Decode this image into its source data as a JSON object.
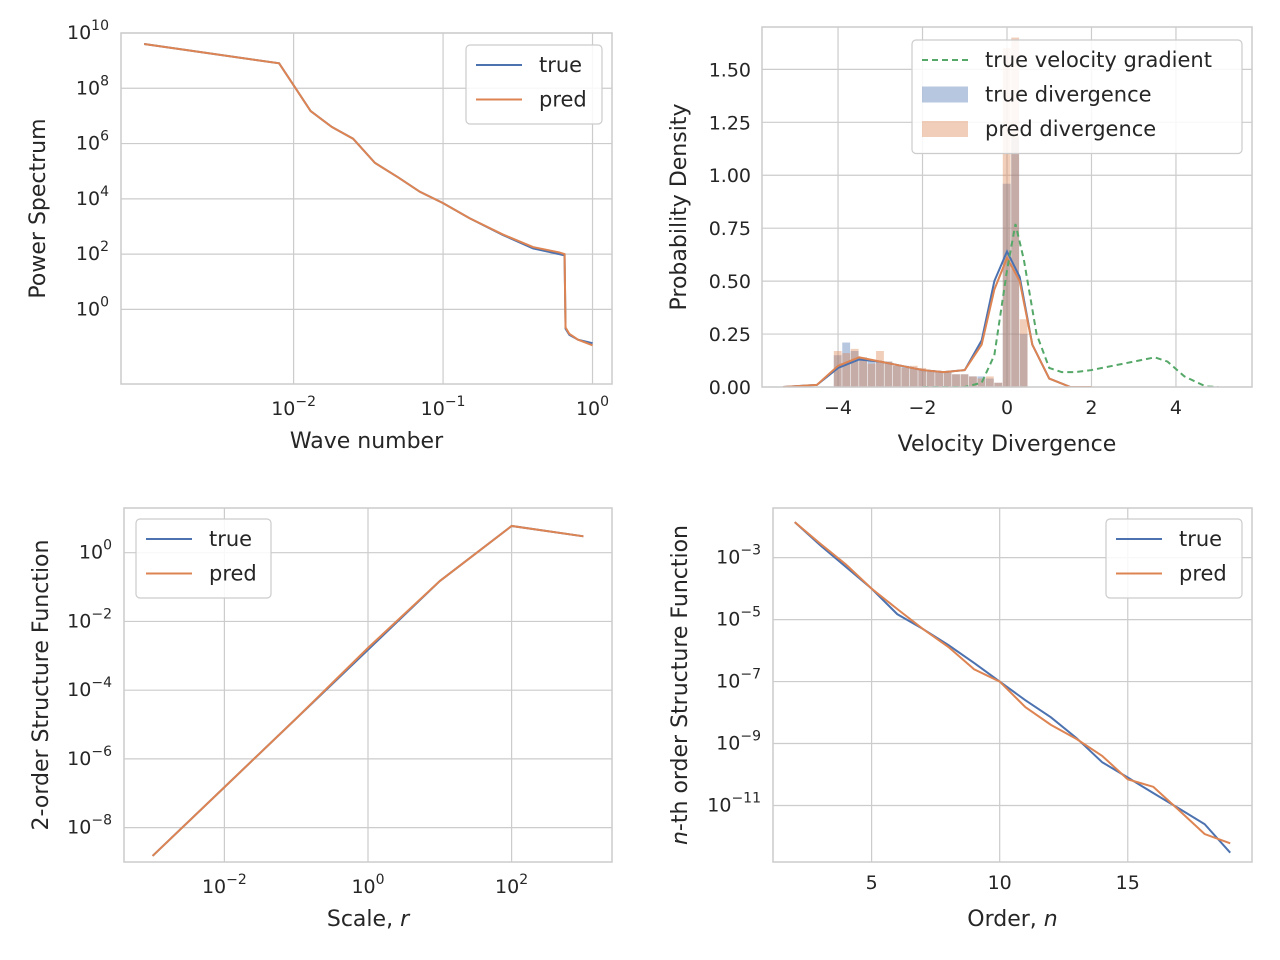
{
  "colors": {
    "true": "#4c72b0",
    "pred": "#dd8452",
    "gradient": "#55a868"
  },
  "chart_data": [
    {
      "id": "power-spectrum",
      "type": "line",
      "xscale": "log",
      "yscale": "log",
      "xlabel": "Wave number",
      "ylabel": "Power Spectrum",
      "xlim": [
        0.0007,
        1.35
      ],
      "ylim": [
        0.002,
        10000000000
      ],
      "xticks": [
        {
          "value": 0.01,
          "base": "10",
          "exp": "−2"
        },
        {
          "value": 0.1,
          "base": "10",
          "exp": "−1"
        },
        {
          "value": 1,
          "base": "10",
          "exp": "0"
        }
      ],
      "yticks": [
        {
          "value": 1,
          "base": "10",
          "exp": "0"
        },
        {
          "value": 100,
          "base": "10",
          "exp": "2"
        },
        {
          "value": 10000,
          "base": "10",
          "exp": "4"
        },
        {
          "value": 1000000,
          "base": "10",
          "exp": "6"
        },
        {
          "value": 100000000,
          "base": "10",
          "exp": "8"
        },
        {
          "value": 10000000000,
          "base": "10",
          "exp": "10"
        }
      ],
      "legend": {
        "position": "top-right",
        "entries": [
          "true",
          "pred"
        ]
      },
      "series": [
        {
          "name": "true",
          "color": "true",
          "x": [
            0.001,
            0.008,
            0.013,
            0.018,
            0.025,
            0.035,
            0.05,
            0.07,
            0.1,
            0.15,
            0.25,
            0.4,
            0.6,
            0.65,
            0.66,
            0.7,
            0.8,
            1.0
          ],
          "y": [
            4000000000,
            800000000,
            15000000,
            4000000,
            1500000,
            200000,
            60000,
            18000,
            7000,
            2000,
            500,
            160,
            100,
            90,
            0.2,
            0.12,
            0.08,
            0.06
          ]
        },
        {
          "name": "pred",
          "color": "pred",
          "x": [
            0.001,
            0.008,
            0.013,
            0.018,
            0.025,
            0.035,
            0.05,
            0.07,
            0.1,
            0.15,
            0.25,
            0.4,
            0.6,
            0.65,
            0.66,
            0.7,
            0.8,
            1.0
          ],
          "y": [
            4000000000,
            800000000,
            15000000,
            4000000,
            1500000,
            200000,
            60000,
            18000,
            7000,
            2000,
            520,
            180,
            115,
            100,
            0.22,
            0.13,
            0.08,
            0.05
          ]
        }
      ]
    },
    {
      "id": "velocity-divergence",
      "type": "histogram",
      "xscale": "linear",
      "yscale": "linear",
      "xlabel": "Velocity Divergence",
      "ylabel": "Probability Density",
      "xlim": [
        -5.8,
        5.8
      ],
      "ylim": [
        0,
        1.7
      ],
      "xticks": [
        {
          "value": -4,
          "text": "−4"
        },
        {
          "value": -2,
          "text": "−2"
        },
        {
          "value": 0,
          "text": "0"
        },
        {
          "value": 2,
          "text": "2"
        },
        {
          "value": 4,
          "text": "4"
        }
      ],
      "yticks": [
        {
          "value": 0,
          "text": "0.00"
        },
        {
          "value": 0.25,
          "text": "0.25"
        },
        {
          "value": 0.5,
          "text": "0.50"
        },
        {
          "value": 0.75,
          "text": "0.75"
        },
        {
          "value": 1.0,
          "text": "1.00"
        },
        {
          "value": 1.25,
          "text": "1.25"
        },
        {
          "value": 1.5,
          "text": "1.50"
        }
      ],
      "legend": {
        "position": "top-right",
        "entries": [
          "true velocity gradient",
          "true divergence",
          "pred divergence"
        ]
      },
      "hist_true": {
        "bin_start": -4.1,
        "bin_width": 0.2,
        "values": [
          0.15,
          0.21,
          0.17,
          0.14,
          0.13,
          0.12,
          0.12,
          0.1,
          0.1,
          0.09,
          0.08,
          0.08,
          0.07,
          0.07,
          0.06,
          0.06,
          0.05,
          0.05,
          0.04,
          0.02,
          0.96,
          1.18,
          0.25
        ]
      },
      "hist_pred": {
        "bin_start": -4.1,
        "bin_width": 0.2,
        "values": [
          0.17,
          0.16,
          0.18,
          0.13,
          0.11,
          0.17,
          0.12,
          0.1,
          0.09,
          0.1,
          0.09,
          0.08,
          0.07,
          0.07,
          0.06,
          0.06,
          0.05,
          0.04,
          0.05,
          0.02,
          1.6,
          1.65,
          0.32
        ]
      },
      "series": [
        {
          "name": "true divergence",
          "color": "true",
          "style": "solid",
          "x": [
            -5.3,
            -4.5,
            -4.0,
            -3.5,
            -3.0,
            -2.5,
            -2.0,
            -1.5,
            -1.0,
            -0.6,
            -0.3,
            0.0,
            0.3,
            0.6,
            1.0,
            1.5,
            2.0
          ],
          "y": [
            0.0,
            0.01,
            0.09,
            0.13,
            0.12,
            0.1,
            0.08,
            0.07,
            0.08,
            0.22,
            0.5,
            0.64,
            0.52,
            0.2,
            0.04,
            0.0,
            0.0
          ]
        },
        {
          "name": "pred divergence",
          "color": "pred",
          "style": "solid",
          "x": [
            -5.3,
            -4.5,
            -4.0,
            -3.5,
            -3.0,
            -2.5,
            -2.0,
            -1.5,
            -1.0,
            -0.6,
            -0.3,
            0.0,
            0.3,
            0.6,
            1.0,
            1.5,
            2.0
          ],
          "y": [
            0.0,
            0.01,
            0.1,
            0.14,
            0.12,
            0.1,
            0.08,
            0.07,
            0.08,
            0.2,
            0.46,
            0.61,
            0.5,
            0.2,
            0.04,
            0.0,
            0.0
          ]
        },
        {
          "name": "true velocity gradient",
          "color": "gradient",
          "style": "dashed",
          "x": [
            -2.0,
            -1.0,
            -0.6,
            -0.3,
            0.0,
            0.2,
            0.4,
            0.7,
            1.0,
            1.3,
            1.6,
            2.0,
            2.5,
            3.0,
            3.5,
            3.8,
            4.2,
            4.7,
            5.0
          ],
          "y": [
            0.0,
            0.0,
            0.02,
            0.15,
            0.55,
            0.77,
            0.6,
            0.25,
            0.09,
            0.07,
            0.07,
            0.08,
            0.1,
            0.12,
            0.14,
            0.12,
            0.05,
            0.003,
            0.0
          ]
        }
      ]
    },
    {
      "id": "second-order-structure",
      "type": "line",
      "xscale": "log",
      "yscale": "log",
      "xlabel": "Scale, ",
      "xlabel_var": "r",
      "ylabel": "2-order Structure Function",
      "xlim": [
        0.0004,
        2500
      ],
      "ylim": [
        1e-09,
        20
      ],
      "xticks": [
        {
          "value": 0.01,
          "base": "10",
          "exp": "−2"
        },
        {
          "value": 1,
          "base": "10",
          "exp": "0"
        },
        {
          "value": 100,
          "base": "10",
          "exp": "2"
        }
      ],
      "yticks": [
        {
          "value": 1e-08,
          "base": "10",
          "exp": "−8"
        },
        {
          "value": 1e-06,
          "base": "10",
          "exp": "−6"
        },
        {
          "value": 0.0001,
          "base": "10",
          "exp": "−4"
        },
        {
          "value": 0.01,
          "base": "10",
          "exp": "−2"
        },
        {
          "value": 1,
          "base": "10",
          "exp": "0"
        }
      ],
      "legend": {
        "position": "top-left",
        "entries": [
          "true",
          "pred"
        ]
      },
      "series": [
        {
          "name": "true",
          "color": "true",
          "x": [
            0.001,
            0.01,
            0.1,
            1,
            10,
            100,
            1000
          ],
          "y": [
            1.5e-09,
            1.5e-07,
            1.5e-05,
            0.0015,
            0.15,
            6,
            3
          ]
        },
        {
          "name": "pred",
          "color": "pred",
          "x": [
            0.001,
            0.01,
            0.1,
            1,
            10,
            100,
            1000
          ],
          "y": [
            1.5e-09,
            1.5e-07,
            1.5e-05,
            0.0017,
            0.15,
            6,
            3
          ]
        }
      ]
    },
    {
      "id": "nth-order-structure",
      "type": "line",
      "xscale": "linear",
      "yscale": "log",
      "xlabel": "Order, ",
      "xlabel_var": "n",
      "ylabel_var": "n",
      "ylabel": "-th order Structure Function",
      "xlim": [
        1.15,
        19.85
      ],
      "ylim": [
        1.5e-13,
        0.04
      ],
      "xticks": [
        {
          "value": 5,
          "text": "5"
        },
        {
          "value": 10,
          "text": "10"
        },
        {
          "value": 15,
          "text": "15"
        }
      ],
      "yticks": [
        {
          "value": 1e-11,
          "base": "10",
          "exp": "−11"
        },
        {
          "value": 1e-09,
          "base": "10",
          "exp": "−9"
        },
        {
          "value": 1e-07,
          "base": "10",
          "exp": "−7"
        },
        {
          "value": 1e-05,
          "base": "10",
          "exp": "−5"
        },
        {
          "value": 0.001,
          "base": "10",
          "exp": "−3"
        }
      ],
      "legend": {
        "position": "top-right",
        "entries": [
          "true",
          "pred"
        ]
      },
      "series": [
        {
          "name": "true",
          "color": "true",
          "x": [
            2,
            3,
            4,
            5,
            6,
            7,
            8,
            9,
            10,
            11,
            12,
            13,
            14,
            15,
            16,
            17,
            18,
            19
          ],
          "y": [
            0.014,
            0.0025,
            0.0005,
            0.0001,
            1.5e-05,
            5e-06,
            1.5e-06,
            4e-07,
            1e-07,
            2.5e-08,
            7e-09,
            1.5e-09,
            2.5e-10,
            8e-11,
            2.5e-11,
            8e-12,
            2.5e-12,
            3e-13
          ]
        },
        {
          "name": "pred",
          "color": "pred",
          "x": [
            2,
            3,
            4,
            5,
            6,
            7,
            8,
            9,
            10,
            11,
            12,
            13,
            14,
            15,
            16,
            17,
            18,
            19
          ],
          "y": [
            0.014,
            0.0028,
            0.0006,
            0.0001,
            2.2e-05,
            5e-06,
            1.3e-06,
            2.5e-07,
            1e-07,
            1.5e-08,
            4e-09,
            1.4e-09,
            4e-10,
            7e-11,
            4e-11,
            7e-12,
            1.2e-12,
            6e-13
          ]
        }
      ]
    }
  ]
}
